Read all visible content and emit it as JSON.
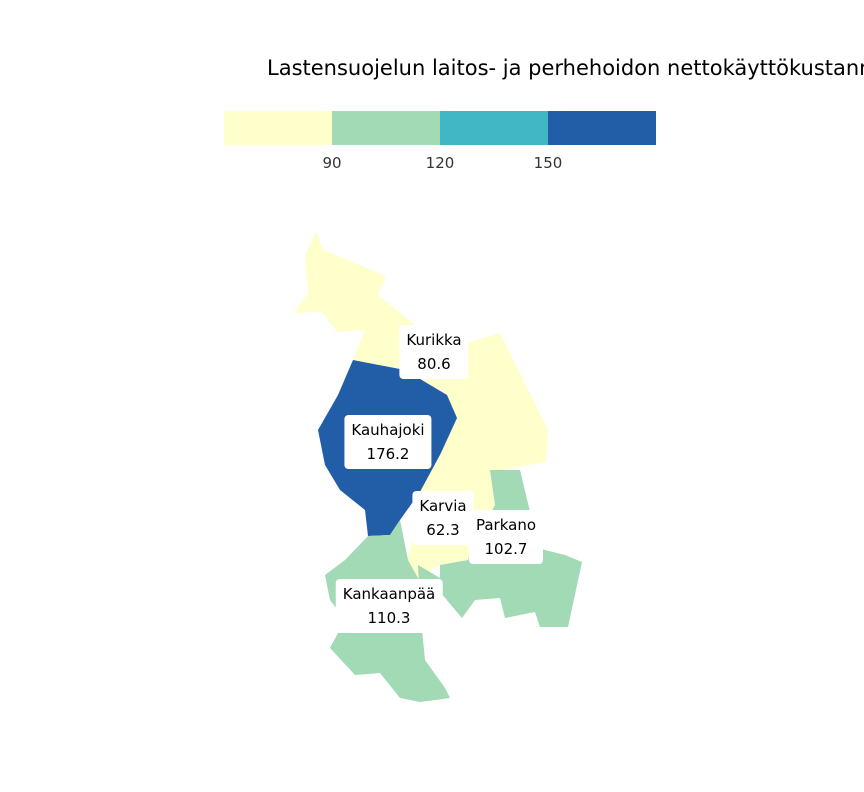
{
  "title": "Lastensuojelun laitos- ja perhehoidon nettokäyttökustann",
  "legend": {
    "colors": [
      "#ffffcc",
      "#a1dab4",
      "#41b6c4",
      "#225ea8"
    ],
    "breaks": [
      "90",
      "120",
      "150"
    ]
  },
  "regions": [
    {
      "name": "Kurikka",
      "value": "80.6",
      "color": "#ffffcc"
    },
    {
      "name": "Kauhajoki",
      "value": "176.2",
      "color": "#225ea8"
    },
    {
      "name": "Karvia",
      "value": "62.3",
      "color": "#ffffcc"
    },
    {
      "name": "Parkano",
      "value": "102.7",
      "color": "#a1dab4"
    },
    {
      "name": "Kankaanpää",
      "value": "110.3",
      "color": "#a1dab4"
    }
  ]
}
